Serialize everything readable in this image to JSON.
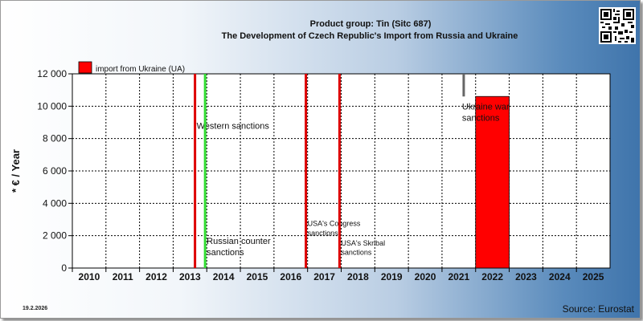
{
  "header": {
    "title_line_1": "Product group: Tin (Sitc 687)",
    "title_line_2": "The Development of Czech Republic's Import from  Russia and Ukraine"
  },
  "footer": {
    "date": "19.2.2026",
    "source": "Source: Eurostat"
  },
  "qr_code": {
    "icon": "qr-code-icon"
  },
  "colors": {
    "ukraine_bar": "#ff0000",
    "sanction_line": "#dd0000",
    "counter_sanction_line": "#33dd33",
    "plot_background": "#ffffff",
    "grid": "#000000"
  },
  "chart_data": {
    "type": "bar",
    "title": "Product group: Tin (Sitc 687)",
    "subtitle": "The Development of Czech Republic's Import from  Russia and Ukraine",
    "ylabel": "* € / Year",
    "xlabel": "",
    "categories": [
      "2010",
      "2011",
      "2012",
      "2013",
      "2014",
      "2015",
      "2016",
      "2017",
      "2018",
      "2019",
      "2020",
      "2021",
      "2022",
      "2023",
      "2024",
      "2025"
    ],
    "ylim": [
      0,
      12000
    ],
    "yticks": [
      0,
      2000,
      4000,
      6000,
      8000,
      10000,
      12000
    ],
    "ytick_labels": [
      "0",
      "2 000",
      "4 000",
      "6 000",
      "8 000",
      "10 000",
      "12 000"
    ],
    "grid": true,
    "legend_position": "top-left",
    "series": [
      {
        "name": "import from Ukraine (UA)",
        "color": "#ff0000",
        "values": [
          0,
          0,
          0,
          0,
          0,
          0,
          0,
          0,
          0,
          0,
          0,
          0,
          10600,
          0,
          0,
          0
        ]
      }
    ],
    "events": [
      {
        "label": "Western sanctions",
        "x": 2014,
        "offset": -0.35,
        "color": "#dd0000",
        "text_y": 8600,
        "size": 11
      },
      {
        "label": "Russian counter sanctions",
        "x": 2014,
        "offset": -0.05,
        "color": "#33dd33",
        "text_y": 1500,
        "size": 11
      },
      {
        "label": "USA's Congress sanctions",
        "x": 2017,
        "offset": -0.05,
        "color": "#dd0000",
        "text_y": 2600,
        "size": 9
      },
      {
        "label": "USA's Skribal sanctions",
        "x": 2018,
        "offset": -0.05,
        "color": "#dd0000",
        "text_y": 1400,
        "size": 9
      },
      {
        "label": "Ukraine war sanctions",
        "x": 2022,
        "offset": -0.45,
        "color": "#666666",
        "text_y": 9800,
        "size": 11
      }
    ]
  }
}
